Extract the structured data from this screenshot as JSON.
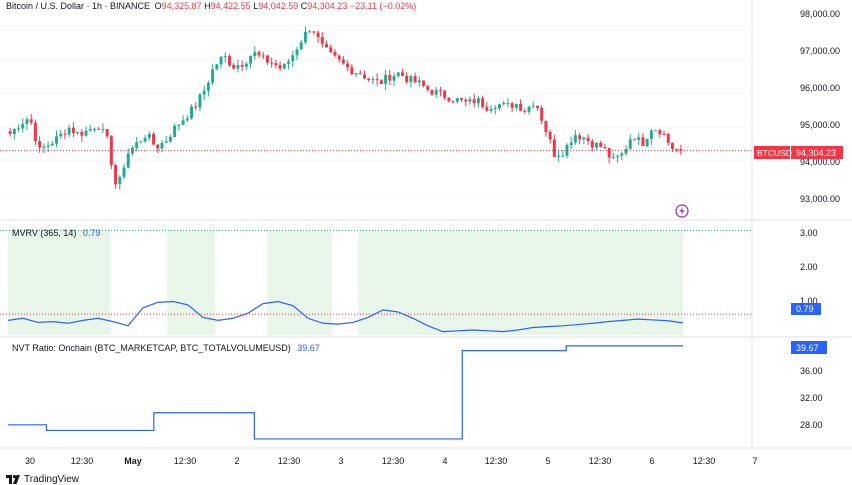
{
  "header": {
    "symbol_title": "Bitcoin / U.S. Dollar · 1h · BINANCE",
    "o_label": "O",
    "o_value": "94,325.87",
    "h_label": "H",
    "h_value": "94,422.55",
    "l_label": "L",
    "l_value": "94,042.59",
    "c_label": "C",
    "c_value": "94,304.23",
    "change": "−23.11 (−0.02%)"
  },
  "colors": {
    "up": "#22ab94",
    "down": "#f23645",
    "line_blue": "#2962ff",
    "shade": "#e8f5e9",
    "grid": "#f0f3fa",
    "text": "#131722",
    "axis_text": "#131722"
  },
  "price_axis": {
    "ticks": [
      "98,000.00",
      "97,000.00",
      "96,000.00",
      "95,000.00",
      "94,000.00",
      "93,000.00"
    ],
    "last_symbol": "BTCUSD",
    "last_price": "94,304.23"
  },
  "mvrv": {
    "title": "MVRV (365, 14)",
    "value": "0.79",
    "ticks": [
      "3.00",
      "2.00",
      "1.00"
    ],
    "value_label": "0.79"
  },
  "nvt": {
    "title": "NVT Ratio: Onchain (BTC_MARKETCAP, BTC_TOTALVOLUMEUSD)",
    "value": "39.67",
    "ticks": [
      "36.00",
      "32.00",
      "28.00"
    ],
    "value_label": "39.67"
  },
  "time_axis": [
    "30",
    "12:30",
    "May",
    "12:30",
    "2",
    "12:30",
    "3",
    "12:30",
    "4",
    "12:30",
    "5",
    "12:30",
    "6",
    "12:30",
    "7"
  ],
  "footer": {
    "brand": "TradingView"
  },
  "chart_data": [
    {
      "type": "candlestick",
      "title": "Bitcoin / U.S. Dollar · 1h · BINANCE",
      "ylim": [
        92700,
        98400
      ],
      "x": [
        "30",
        "12:30",
        "May",
        "12:30",
        "2",
        "12:30",
        "3",
        "12:30",
        "4",
        "12:30",
        "5",
        "12:30",
        "6",
        "12:30",
        "7"
      ],
      "close_path": [
        94800,
        95100,
        95300,
        94300,
        94500,
        94700,
        95000,
        94800,
        94900,
        95100,
        94600,
        93100,
        94200,
        94500,
        94800,
        94400,
        94600,
        95000,
        95300,
        95600,
        96100,
        96800,
        97100,
        96800,
        96900,
        97200,
        97000,
        96900,
        96700,
        97100,
        97600,
        98000,
        97400,
        97100,
        96900,
        96700,
        96600,
        96400,
        96300,
        96500,
        96600,
        96400,
        96300,
        96100,
        96000,
        95900,
        95800,
        95700,
        95800,
        95600,
        95700,
        95600,
        95700,
        95500,
        95800,
        95000,
        94200,
        94300,
        94800,
        94700,
        94500,
        94400,
        94000,
        94200,
        94800,
        94500,
        95000,
        94900,
        94400,
        94300
      ],
      "last": 94304.23
    },
    {
      "type": "line",
      "title": "MVRV (365, 14)",
      "ylim": [
        0.5,
        3.2
      ],
      "y_path": [
        0.85,
        0.9,
        0.8,
        0.82,
        0.78,
        0.85,
        0.9,
        0.82,
        0.72,
        1.15,
        1.28,
        1.3,
        1.22,
        0.92,
        0.85,
        0.9,
        1.02,
        1.25,
        1.3,
        1.2,
        0.9,
        0.78,
        0.76,
        0.8,
        0.92,
        1.1,
        1.05,
        0.9,
        0.72,
        0.58,
        0.6,
        0.62,
        0.6,
        0.58,
        0.62,
        0.68,
        0.7,
        0.72,
        0.75,
        0.78,
        0.82,
        0.85,
        0.88,
        0.86,
        0.84,
        0.79
      ],
      "shaded_regions_x_fraction": [
        [
          0.0,
          0.152
        ],
        [
          0.236,
          0.307
        ],
        [
          0.384,
          0.48
        ],
        [
          0.519,
          1.0
        ]
      ],
      "last": 0.79
    },
    {
      "type": "line",
      "title": "NVT Ratio: Onchain (BTC_MARKETCAP, BTC_TOTALVOLUMEUSD)",
      "ylim": [
        25.5,
        40.5
      ],
      "steps": [
        {
          "x0": 0.0,
          "x1": 0.057,
          "y": 28.5
        },
        {
          "x0": 0.057,
          "x1": 0.216,
          "y": 27.7
        },
        {
          "x0": 0.216,
          "x1": 0.365,
          "y": 30.2
        },
        {
          "x0": 0.365,
          "x1": 0.673,
          "y": 26.5
        },
        {
          "x0": 0.673,
          "x1": 0.827,
          "y": 39.0
        },
        {
          "x0": 0.827,
          "x1": 1.0,
          "y": 39.67
        }
      ],
      "last": 39.67
    }
  ]
}
